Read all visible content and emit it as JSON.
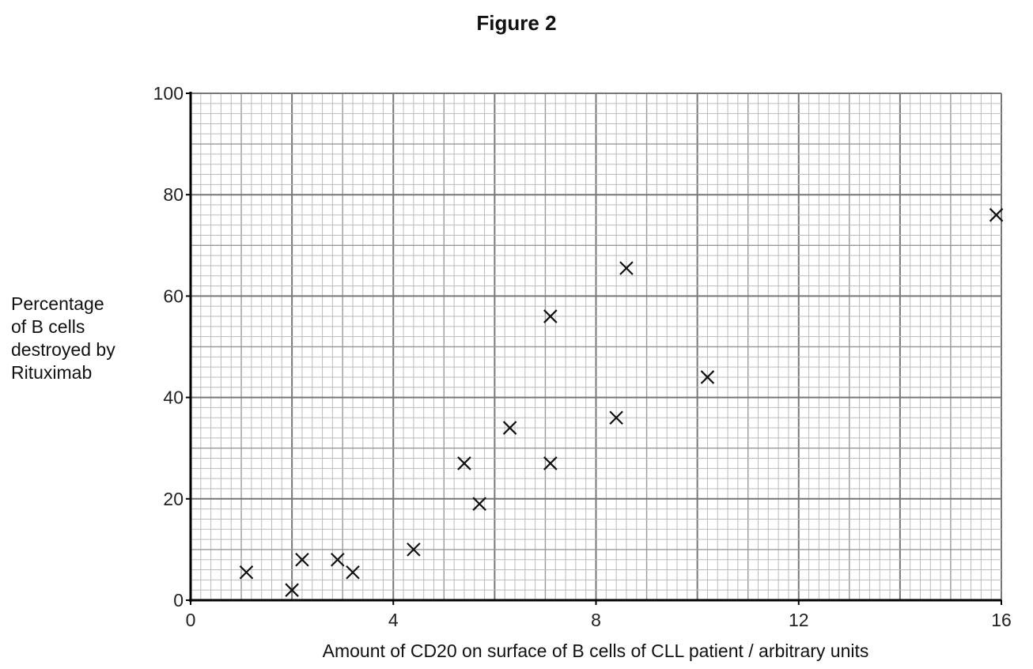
{
  "chart_data": {
    "type": "scatter",
    "title": "Figure 2",
    "xlabel": "Amount of CD20 on surface of B cells of CLL patient / arbitrary units",
    "ylabel": "Percentage\nof B cells\ndestroyed by\nRituximab",
    "xlim": [
      0,
      16
    ],
    "ylim": [
      0,
      100
    ],
    "xticks": [
      "0",
      "4",
      "8",
      "12",
      "16"
    ],
    "yticks": [
      "0",
      "20",
      "40",
      "60",
      "80",
      "100"
    ],
    "grid": true,
    "marker": "x",
    "points": [
      {
        "x": 1.1,
        "y": 5.5
      },
      {
        "x": 2.0,
        "y": 2
      },
      {
        "x": 2.2,
        "y": 8
      },
      {
        "x": 2.9,
        "y": 8
      },
      {
        "x": 3.2,
        "y": 5.5
      },
      {
        "x": 4.4,
        "y": 10
      },
      {
        "x": 5.4,
        "y": 27
      },
      {
        "x": 5.7,
        "y": 19
      },
      {
        "x": 6.3,
        "y": 34
      },
      {
        "x": 7.1,
        "y": 56
      },
      {
        "x": 7.1,
        "y": 27
      },
      {
        "x": 8.4,
        "y": 36
      },
      {
        "x": 8.6,
        "y": 65.5
      },
      {
        "x": 10.2,
        "y": 44
      },
      {
        "x": 15.9,
        "y": 76
      }
    ]
  }
}
